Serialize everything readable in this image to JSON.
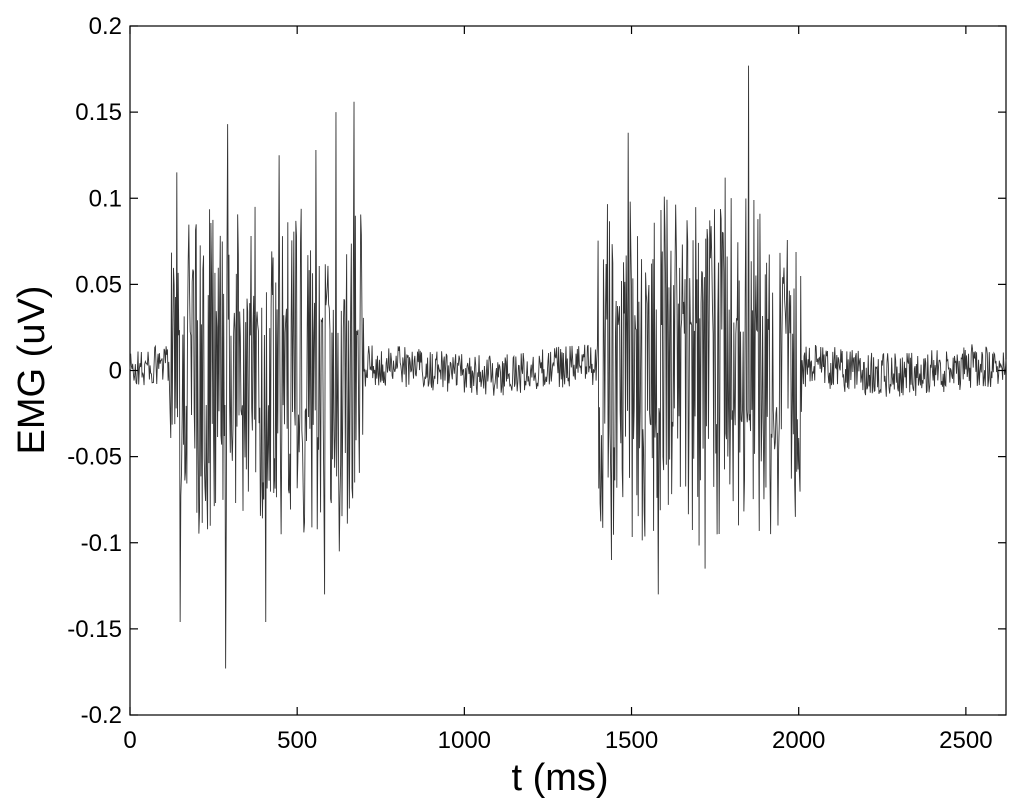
{
  "chart_data": {
    "type": "line",
    "xlabel": "t (ms)",
    "ylabel": "EMG (uV)",
    "xlim": [
      0,
      2620
    ],
    "ylim": [
      -0.2,
      0.2
    ],
    "grid": false,
    "line_color": "#333333",
    "x_ticks": [
      0,
      500,
      1000,
      1500,
      2000,
      2500
    ],
    "x_tick_labels": [
      "0",
      "500",
      "1000",
      "1500",
      "2000",
      "2500"
    ],
    "y_ticks": [
      0.2,
      0.15,
      0.1,
      0.05,
      0,
      -0.05,
      -0.1,
      -0.15,
      -0.2
    ],
    "y_tick_labels": [
      "0.2",
      "0.15",
      "0.1",
      "0.05",
      "0",
      "-0.05",
      "-0.1",
      "-0.15",
      "-0.2"
    ],
    "series": [
      {
        "sample_interval_ms": 2,
        "x_range": [
          0,
          2620
        ],
        "segments": [
          {
            "x": [
              0,
              120
            ],
            "amplitude": 0.012
          },
          {
            "x": [
              120,
              700
            ],
            "amplitude": 0.08
          },
          {
            "x": [
              700,
              1400
            ],
            "amplitude": 0.012
          },
          {
            "x": [
              1400,
              2010
            ],
            "amplitude": 0.085
          },
          {
            "x": [
              2010,
              2620
            ],
            "amplitude": 0.013
          }
        ],
        "peaks": [
          {
            "x": 140,
            "y": 0.115
          },
          {
            "x": 150,
            "y": -0.146
          },
          {
            "x": 230,
            "y": -0.07
          },
          {
            "x": 285,
            "y": -0.173
          },
          {
            "x": 292,
            "y": 0.143
          },
          {
            "x": 405,
            "y": -0.146
          },
          {
            "x": 445,
            "y": 0.125
          },
          {
            "x": 555,
            "y": 0.128
          },
          {
            "x": 582,
            "y": -0.13
          },
          {
            "x": 615,
            "y": 0.15
          },
          {
            "x": 625,
            "y": -0.105
          },
          {
            "x": 670,
            "y": 0.156
          },
          {
            "x": 1440,
            "y": -0.11
          },
          {
            "x": 1490,
            "y": 0.138
          },
          {
            "x": 1580,
            "y": -0.13
          },
          {
            "x": 1720,
            "y": -0.115
          },
          {
            "x": 1780,
            "y": 0.112
          },
          {
            "x": 1850,
            "y": 0.177
          },
          {
            "x": 1915,
            "y": -0.095
          },
          {
            "x": 1990,
            "y": -0.085
          }
        ]
      }
    ]
  }
}
